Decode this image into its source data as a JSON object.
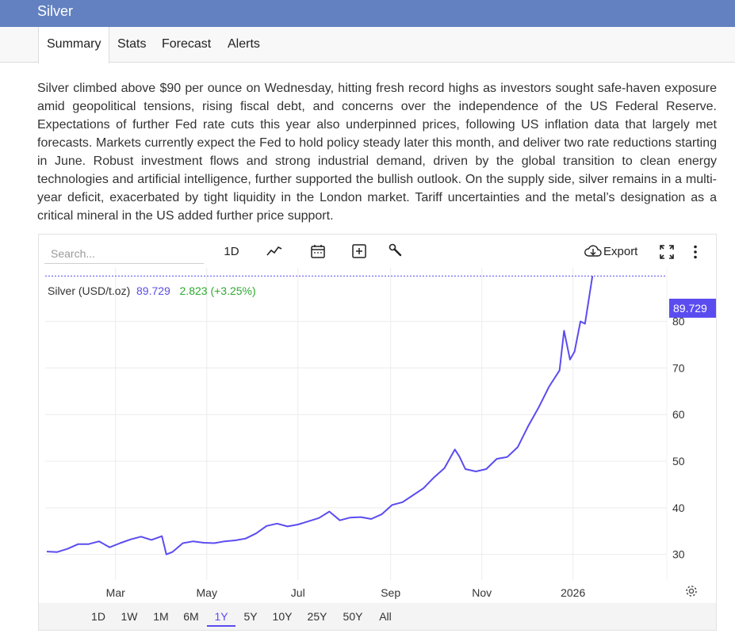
{
  "header": {
    "title": "Silver"
  },
  "tabs": [
    {
      "label": "Summary",
      "active": true
    },
    {
      "label": "Stats",
      "active": false
    },
    {
      "label": "Forecast",
      "active": false
    },
    {
      "label": "Alerts",
      "active": false
    }
  ],
  "summary_text": "Silver climbed above $90 per ounce on Wednesday, hitting fresh record highs as investors sought safe-haven exposure amid geopolitical tensions, rising fiscal debt, and concerns over the independence of the US Federal Reserve. Expectations of further Fed rate cuts this year also underpinned prices, following US inflation data that largely met forecasts. Markets currently expect the Fed to hold policy steady later this month, and deliver two rate reductions starting in June. Robust investment flows and strong industrial demand, driven by the global transition to clean energy technologies and artificial intelligence, further supported the bullish outlook. On the supply side, silver remains in a multi-year deficit, exacerbated by tight liquidity in the London market. Tariff uncertainties and the metal’s designation as a critical mineral in the US added further price support.",
  "toolbar": {
    "search_placeholder": "Search...",
    "interval_label": "1D",
    "export_label": "Export"
  },
  "legend": {
    "name": "Silver (USD/t.oz)",
    "value": "89.729",
    "change": "2.823 (+3.25%)"
  },
  "current_price_label": "89.729",
  "ranges": [
    {
      "label": "1D",
      "active": false
    },
    {
      "label": "1W",
      "active": false
    },
    {
      "label": "1M",
      "active": false
    },
    {
      "label": "6M",
      "active": false
    },
    {
      "label": "1Y",
      "active": true
    },
    {
      "label": "5Y",
      "active": false
    },
    {
      "label": "10Y",
      "active": false
    },
    {
      "label": "25Y",
      "active": false
    },
    {
      "label": "50Y",
      "active": false
    },
    {
      "label": "All",
      "active": false
    }
  ],
  "colors": {
    "header": "#6381c0",
    "line": "#5b4cf0",
    "change_up": "#2eaa2e"
  },
  "icons": [
    "line-chart-icon",
    "calendar-icon",
    "plus-box-icon",
    "wrench-icon",
    "cloud-download-icon",
    "fullscreen-icon",
    "more-vert-icon",
    "settings-gear-icon"
  ],
  "chart_data": {
    "type": "line",
    "x_tick_labels": [
      "Mar",
      "May",
      "Jul",
      "Sep",
      "Nov",
      "2026"
    ],
    "y_ticks": [
      30,
      40,
      50,
      60,
      70,
      80
    ],
    "ylim": [
      24.5,
      91.5
    ],
    "grid": true,
    "series": [
      {
        "name": "Silver (USD/t.oz)",
        "x": [
          "2025-01-14",
          "2025-01-21",
          "2025-01-28",
          "2025-02-04",
          "2025-02-11",
          "2025-02-18",
          "2025-02-25",
          "2025-03-04",
          "2025-03-11",
          "2025-03-18",
          "2025-03-25",
          "2025-04-01",
          "2025-04-04",
          "2025-04-08",
          "2025-04-15",
          "2025-04-22",
          "2025-04-29",
          "2025-05-06",
          "2025-05-13",
          "2025-05-20",
          "2025-05-27",
          "2025-06-03",
          "2025-06-10",
          "2025-06-17",
          "2025-06-24",
          "2025-07-01",
          "2025-07-08",
          "2025-07-15",
          "2025-07-22",
          "2025-07-29",
          "2025-08-05",
          "2025-08-12",
          "2025-08-19",
          "2025-08-26",
          "2025-09-02",
          "2025-09-09",
          "2025-09-16",
          "2025-09-23",
          "2025-09-30",
          "2025-10-07",
          "2025-10-14",
          "2025-10-17",
          "2025-10-21",
          "2025-10-28",
          "2025-11-04",
          "2025-11-11",
          "2025-11-18",
          "2025-11-25",
          "2025-12-02",
          "2025-12-09",
          "2025-12-16",
          "2025-12-23",
          "2025-12-26",
          "2025-12-30",
          "2026-01-02",
          "2026-01-06",
          "2026-01-09",
          "2026-01-14"
        ],
        "y": [
          30.6,
          30.5,
          31.2,
          32.2,
          32.2,
          32.8,
          31.5,
          32.4,
          33.2,
          33.8,
          33.1,
          33.9,
          30.0,
          30.5,
          32.4,
          32.8,
          32.5,
          32.4,
          32.8,
          33.0,
          33.4,
          34.5,
          36.1,
          36.6,
          36.0,
          36.4,
          37.1,
          37.8,
          39.2,
          37.3,
          37.9,
          38.0,
          37.6,
          38.6,
          40.6,
          41.2,
          42.7,
          44.2,
          46.5,
          48.5,
          52.5,
          51.0,
          48.3,
          47.8,
          48.3,
          50.5,
          50.9,
          53.0,
          57.5,
          61.5,
          66.0,
          69.5,
          78.0,
          71.8,
          73.5,
          80.0,
          79.5,
          89.729
        ]
      }
    ]
  }
}
